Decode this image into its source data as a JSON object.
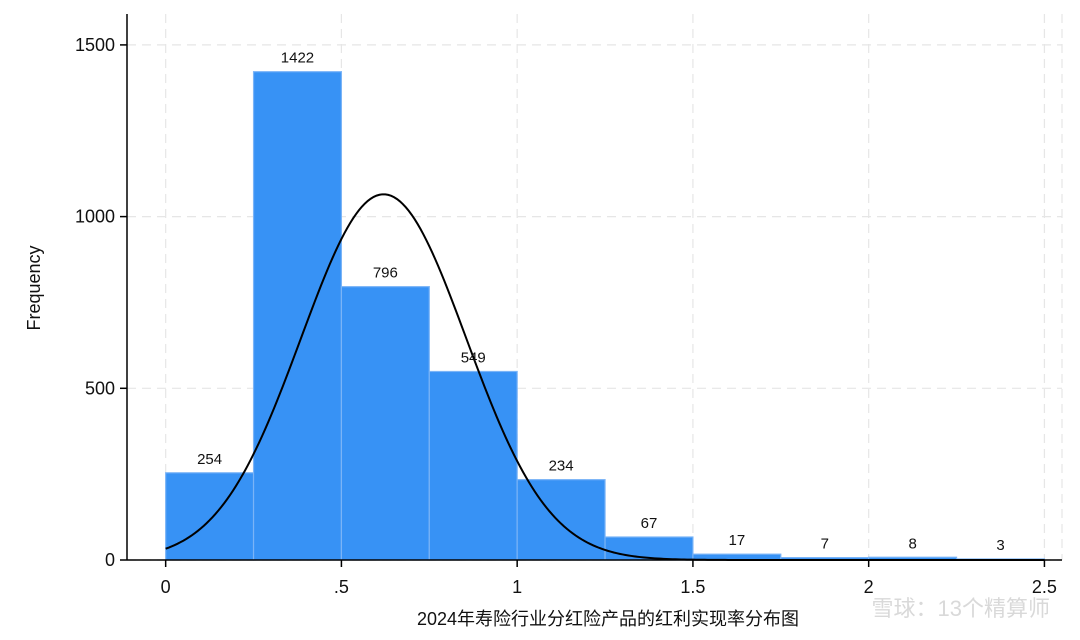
{
  "chart_data": {
    "type": "bar",
    "bins": [
      {
        "start": 0.0,
        "end": 0.25,
        "value": 254
      },
      {
        "start": 0.25,
        "end": 0.5,
        "value": 1422
      },
      {
        "start": 0.5,
        "end": 0.75,
        "value": 796
      },
      {
        "start": 0.75,
        "end": 1.0,
        "value": 549
      },
      {
        "start": 1.0,
        "end": 1.25,
        "value": 234
      },
      {
        "start": 1.25,
        "end": 1.5,
        "value": 67
      },
      {
        "start": 1.5,
        "end": 1.75,
        "value": 17
      },
      {
        "start": 1.75,
        "end": 2.0,
        "value": 7
      },
      {
        "start": 2.0,
        "end": 2.25,
        "value": 8
      },
      {
        "start": 2.25,
        "end": 2.5,
        "value": 3
      }
    ],
    "bar_labels": [
      "254",
      "1422",
      "796",
      "549",
      "234",
      "67",
      "17",
      "7",
      "8",
      "3"
    ],
    "normal_curve": {
      "mean": 0.62,
      "sd": 0.235,
      "peak": 1065
    },
    "xlabel": "2024年寿险行业分红险产品的红利实现率分布图",
    "ylabel": "Frequency",
    "xlim": [
      -0.11,
      2.55
    ],
    "ylim": [
      0,
      1590
    ],
    "xticks": [
      0,
      0.5,
      1,
      1.5,
      2,
      2.5
    ],
    "xtick_labels": [
      "0",
      ".5",
      "1",
      "1.5",
      "2",
      "2.5"
    ],
    "yticks": [
      0,
      500,
      1000,
      1500
    ],
    "ytick_labels": [
      "0",
      "500",
      "1000",
      "1500"
    ],
    "grid": true,
    "bar_color": "#3792f5",
    "bar_edge_color": "#7ab4f7",
    "curve_color": "#000000",
    "grid_color": "#e6e6e6"
  },
  "watermark": {
    "text": "雪球：13个精算师"
  }
}
